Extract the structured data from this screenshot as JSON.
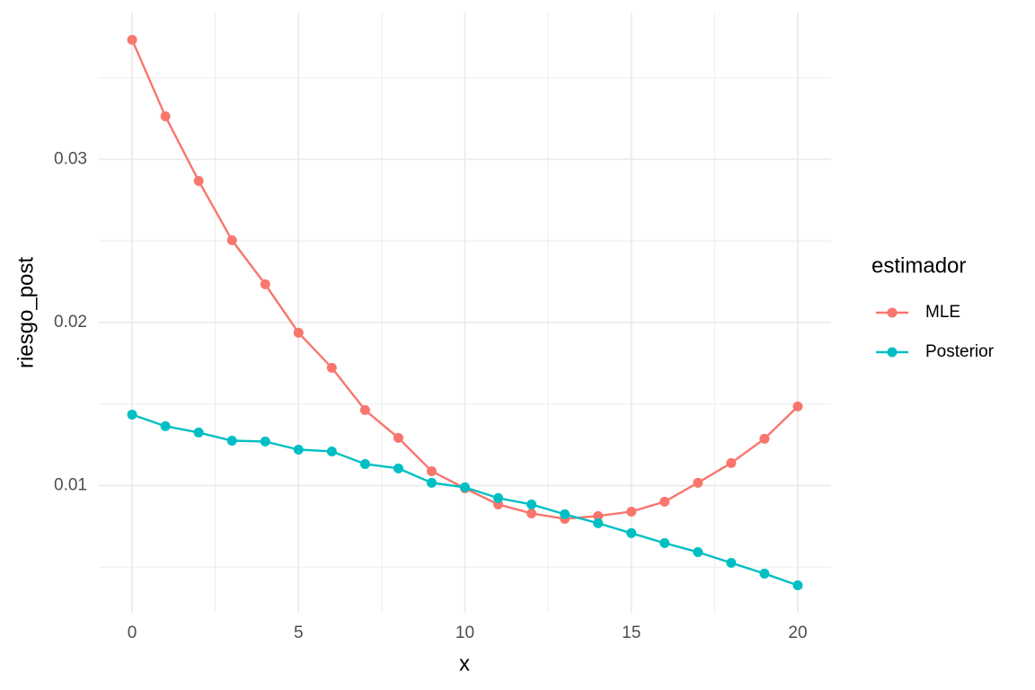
{
  "chart_data": {
    "type": "line",
    "x_label": "x",
    "y_label": "riesgo_post",
    "x": [
      0,
      1,
      2,
      3,
      4,
      5,
      6,
      7,
      8,
      9,
      10,
      11,
      12,
      13,
      14,
      15,
      16,
      17,
      18,
      19,
      20
    ],
    "series": [
      {
        "name": "MLE",
        "color": "#f8766d",
        "values": [
          0.03733,
          0.03264,
          0.02868,
          0.02504,
          0.02234,
          0.01937,
          0.01722,
          0.01463,
          0.01292,
          0.01088,
          0.00983,
          0.00884,
          0.00829,
          0.00796,
          0.00813,
          0.0084,
          0.00901,
          0.01017,
          0.01138,
          0.01287,
          0.01485
        ]
      },
      {
        "name": "Posterior",
        "color": "#00bfc4",
        "values": [
          0.01435,
          0.01364,
          0.01325,
          0.01275,
          0.0127,
          0.0122,
          0.01209,
          0.01132,
          0.01105,
          0.01017,
          0.00989,
          0.00923,
          0.00884,
          0.00824,
          0.00769,
          0.00708,
          0.00647,
          0.00592,
          0.00526,
          0.0046,
          0.00388
        ]
      }
    ],
    "legend_title": "estimador",
    "legend_position": "right",
    "xlim": [
      -1,
      21
    ],
    "xticks": [
      0,
      5,
      10,
      15,
      20
    ],
    "xminor": [
      2.5,
      7.5,
      12.5,
      17.5
    ],
    "ylim": [
      0.0022,
      0.039
    ],
    "yticks": [
      0.01,
      0.02,
      0.03
    ],
    "yminor": [
      0.005,
      0.015,
      0.025,
      0.035
    ],
    "grid": true
  }
}
